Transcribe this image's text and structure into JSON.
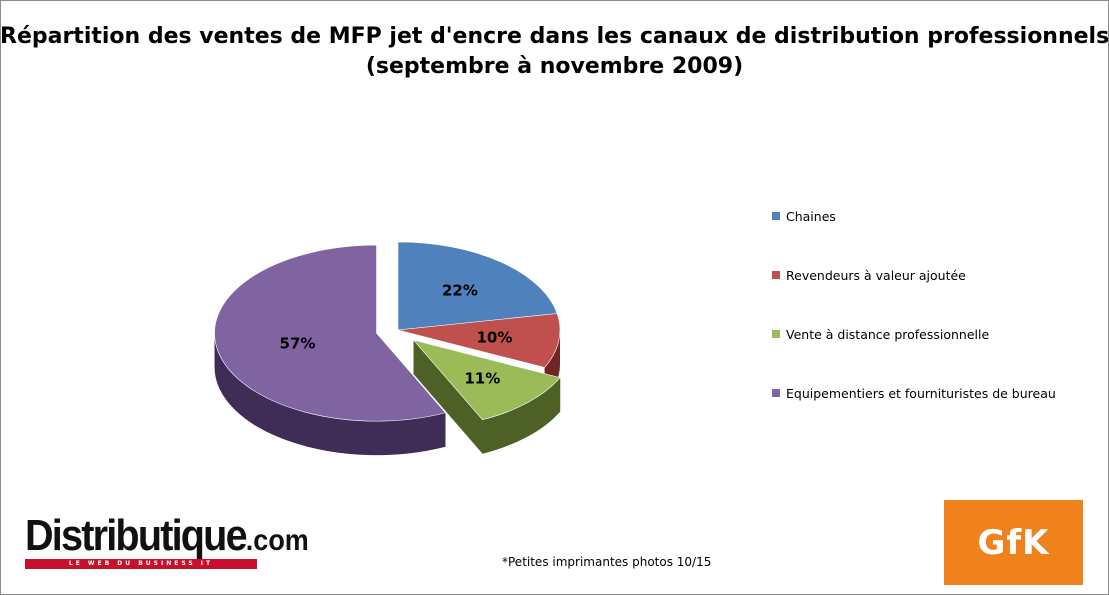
{
  "chart_data": {
    "type": "pie",
    "title_line1": "Répartition des ventes de MFP jet d'encre dans les canaux de distribution professionnels",
    "title_line2": "(septembre à novembre 2009)",
    "slices": [
      {
        "label": "Chaines",
        "value": 22,
        "value_label": "22%",
        "color": "#4f81bd",
        "side_color": "#2a4d78",
        "exploded": false
      },
      {
        "label": "Revendeurs à valeur ajoutée",
        "value": 10,
        "value_label": "10%",
        "color": "#c0504d",
        "side_color": "#6e2624",
        "exploded": false
      },
      {
        "label": "Vente à distance professionnelle",
        "value": 11,
        "value_label": "11%",
        "color": "#9bbb59",
        "side_color": "#4d6127",
        "exploded": true
      },
      {
        "label": "Equipementiers et fournituristes de bureau",
        "value": 57,
        "value_label": "57%",
        "color": "#8064a2",
        "side_color": "#3f2d58",
        "exploded": true
      }
    ],
    "legend_position": "right"
  },
  "footnote": "*Petites imprimantes photos 10/15",
  "logos": {
    "distributique_word": "Distributique",
    "distributique_suffix": ".com",
    "distributique_tagline": "LE WEB DU BUSINESS IT",
    "gfk": "GfK"
  }
}
